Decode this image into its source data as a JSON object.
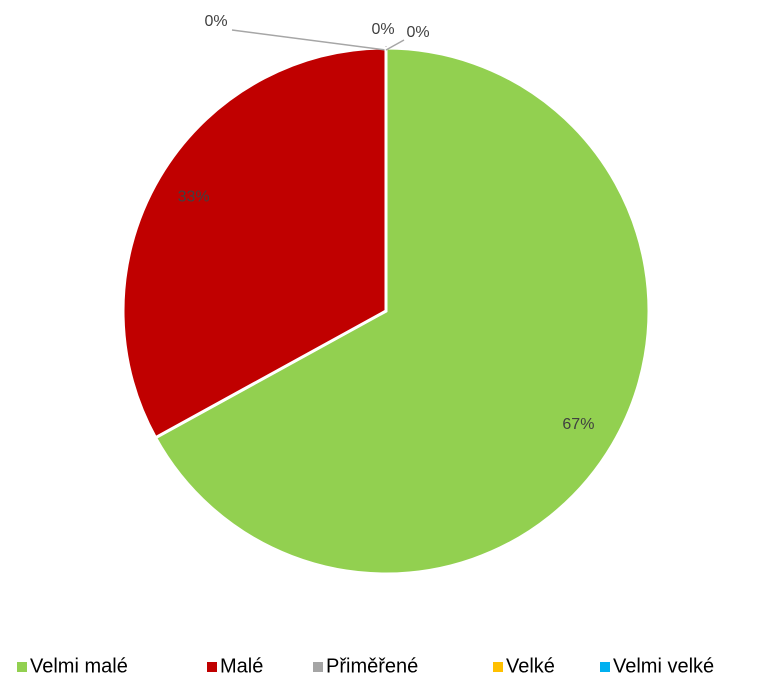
{
  "chart_data": {
    "type": "pie",
    "categories": [
      "Velmi malé",
      "Malé",
      "Přiměřené",
      "Velké",
      "Velmi velké"
    ],
    "values": [
      67,
      33,
      0,
      0,
      0
    ],
    "value_labels": [
      "67%",
      "33%",
      "0%",
      "0%",
      "0%"
    ],
    "colors": [
      "#92d050",
      "#c00000",
      "#a5a5a5",
      "#ffc000",
      "#00b0f0"
    ],
    "legend": "bottom"
  }
}
